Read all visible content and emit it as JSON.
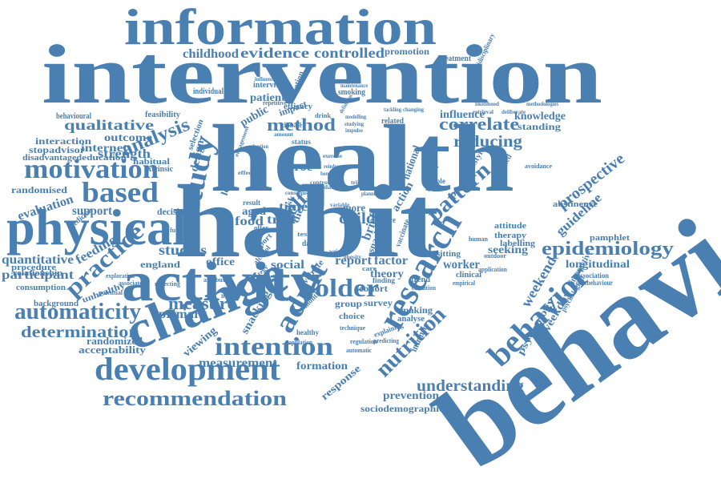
{
  "colors": {
    "word": "#4a7fb2",
    "background": "#ffffff"
  },
  "words": [
    "behaviour",
    "intervention",
    "information",
    "health",
    "habit",
    "activity",
    "change",
    "physical",
    "development",
    "motivation",
    "based",
    "recommendation",
    "research",
    "behavior",
    "study",
    "intention",
    "epidemiology",
    "automaticity",
    "older",
    "adult",
    "practice",
    "analysis",
    "nutrition",
    "determination",
    "understanding",
    "measure",
    "method",
    "correlate",
    "reducing",
    "pattern",
    "qualitative",
    "evidence",
    "controlled",
    "childhood",
    "measurement",
    "quantitative",
    "participant",
    "prospective",
    "guideline",
    "longitudinal",
    "weekend",
    "psychology",
    "weekday",
    "primary",
    "acceptability",
    "randomized",
    "viewing",
    "snacking",
    "formation",
    "prevention",
    "response",
    "sociodemographic",
    "social",
    "england",
    "office",
    "studies",
    "feeding",
    "outcome",
    "strength",
    "internet",
    "interaction",
    "stopadvisor",
    "disadvantaged",
    "education",
    "habitual",
    "randomised",
    "evaluation",
    "support",
    "relationship",
    "procedure",
    "consumption",
    "background",
    "unhealthy",
    "design",
    "selection",
    "time",
    "food",
    "trial",
    "self",
    "child",
    "report",
    "factor",
    "theory",
    "cohort",
    "worker",
    "clinical",
    "survey",
    "making",
    "analyse",
    "group",
    "choice",
    "seeking",
    "pamphlet",
    "therapy",
    "labelling",
    "attitude",
    "abstinence",
    "sitting",
    "national",
    "action",
    "review",
    "parent",
    "knowledge",
    "standing",
    "influence",
    "promotion",
    "treatment",
    "patient",
    "public",
    "smoking",
    "efficacy",
    "impact",
    "cessation",
    "interview",
    "individual",
    "feasibility",
    "behavioural",
    "more",
    "aged",
    "level",
    "reduce",
    "brief",
    "diet",
    "risk",
    "year",
    "trend",
    "interactive",
    "psychological",
    "association",
    "pastbehaviour",
    "intrinsic",
    "extrinsic",
    "decision",
    "medicine",
    "multidisciplinary",
    "related",
    "data",
    "sample",
    "lifestyle",
    "reasoned",
    "avoidance",
    "outdoor",
    "human",
    "application",
    "month",
    "website",
    "engagement",
    "sport",
    "strategy",
    "test",
    "status",
    "finding",
    "care",
    "explaining",
    "automatic",
    "regulation",
    "technique",
    "healthy",
    "population",
    "potential",
    "associated",
    "exploration",
    "reflecting",
    "middle",
    "function",
    "attribute",
    "condition",
    "empirical",
    "predicting",
    "mediation",
    "control",
    "variable",
    "vaccinate",
    "alcohol",
    "proc",
    "result",
    "conscious",
    "repetitive",
    "climate",
    "amount",
    "influencing",
    "maintenance",
    "drink",
    "definition",
    "modelling",
    "studying",
    "impulse",
    "changing",
    "tackling",
    "likelihood",
    "methodologies",
    "retrieval",
    "deliberate",
    "adoption",
    "effect",
    "offer",
    "reinforcement",
    "tried",
    "planning",
    "beneficial",
    "daily",
    "weight",
    "obesity",
    "exercise",
    "snack"
  ]
}
